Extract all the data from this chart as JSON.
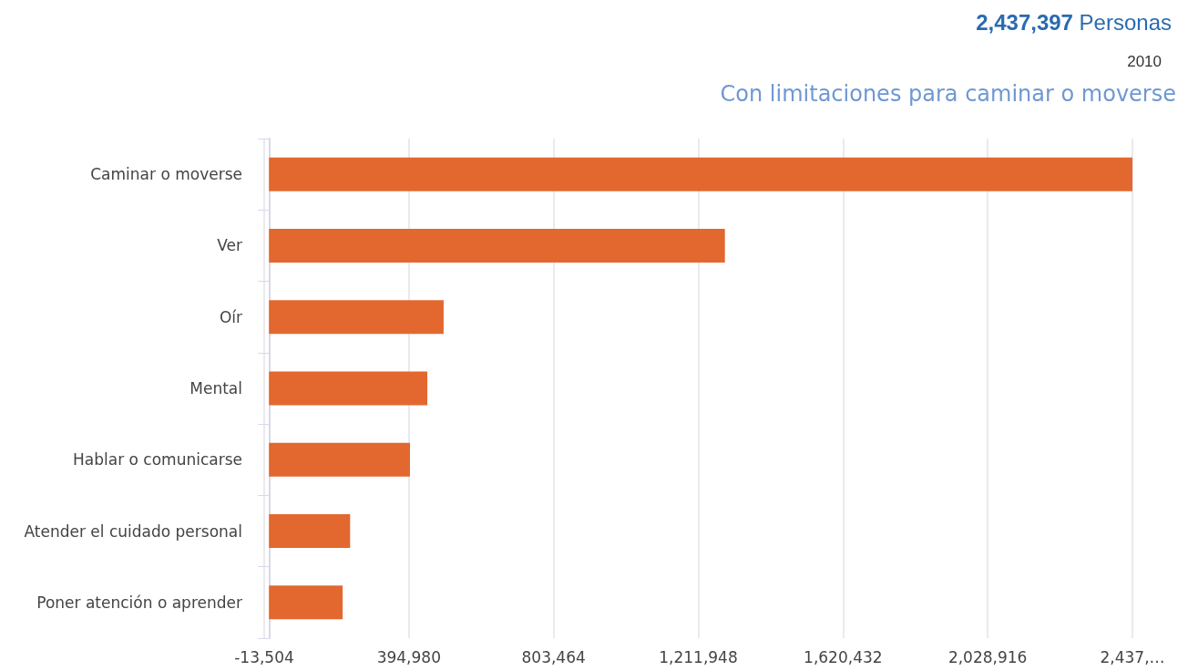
{
  "chart_data": {
    "type": "bar",
    "orientation": "horizontal",
    "title": "Con limitaciones para caminar o moverse",
    "subtitle": "2010",
    "annotations": [
      "2,437,397 Personas"
    ],
    "categories": [
      "Caminar o moverse",
      "Ver",
      "Oír",
      "Mental",
      "Hablar o comunicarse",
      "Atender el cuidado personal",
      "Poner atención o aprender"
    ],
    "values": [
      2437397,
      1287000,
      493000,
      447000,
      398000,
      229000,
      208000
    ],
    "color": "#e2682f",
    "xlim": [
      -13504,
      2437400
    ],
    "xticks": [
      {
        "value": -13504,
        "label": "-13,504"
      },
      {
        "value": 394980,
        "label": "394,980"
      },
      {
        "value": 803464,
        "label": "803,464"
      },
      {
        "value": 1211948,
        "label": "1,211,948"
      },
      {
        "value": 1620432,
        "label": "1,620,432"
      },
      {
        "value": 2028916,
        "label": "2,028,916"
      },
      {
        "value": 2437400,
        "label": "2,437,…"
      }
    ],
    "grid": "x"
  }
}
